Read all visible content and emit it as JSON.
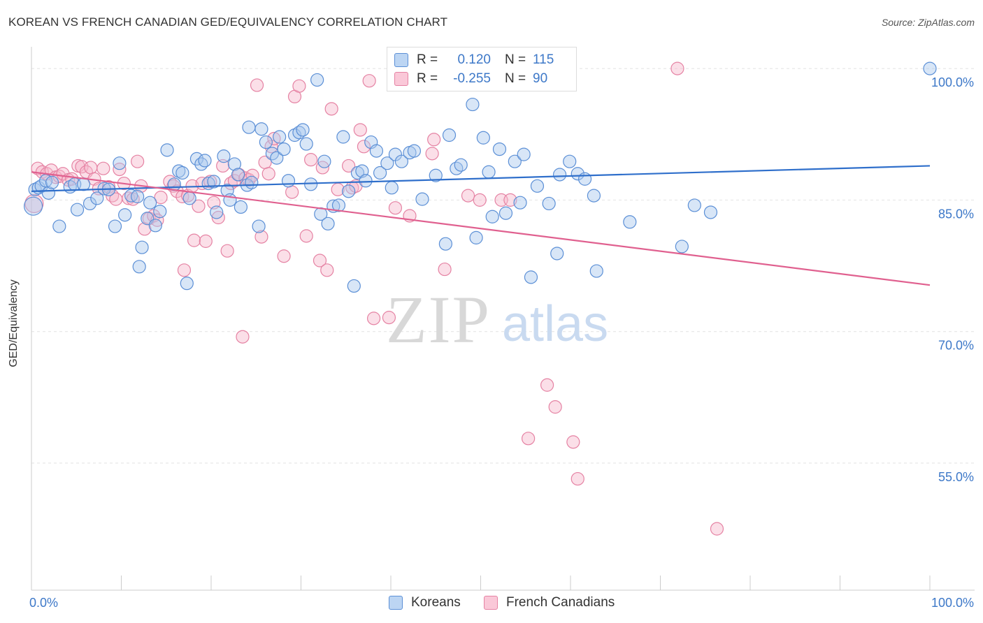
{
  "title": "KOREAN VS FRENCH CANADIAN GED/EQUIVALENCY CORRELATION CHART",
  "source": "Source: ZipAtlas.com",
  "watermark": {
    "zip": "ZIP",
    "atlas": "atlas"
  },
  "legend": {
    "rows": [
      {
        "r_label": "R =",
        "r_value": "0.120",
        "n_label": "N =",
        "n_value": "115"
      },
      {
        "r_label": "R =",
        "r_value": "-0.255",
        "n_label": "N =",
        "n_value": "90"
      }
    ]
  },
  "bottom_legend": [
    "Koreans",
    "French Canadians"
  ],
  "colors": {
    "korean_fill": "#a9c8ee",
    "korean_stroke": "#5b8fd6",
    "korean_line": "#2f6fcb",
    "french_fill": "#f6b8cc",
    "french_stroke": "#e582a3",
    "french_line": "#e0608f",
    "tick_text": "#3d78c8",
    "grid": "#e2e2e2"
  },
  "chart_data": {
    "type": "scatter",
    "ylabel": "GED/Equivalency",
    "xlim": [
      0,
      100
    ],
    "ylim": [
      40.5,
      102
    ],
    "x_tick_labels": [
      "0.0%",
      "100.0%"
    ],
    "y_ticks": [
      100,
      85,
      70,
      55
    ],
    "y_tick_labels": [
      "100.0%",
      "85.0%",
      "70.0%",
      "55.0%"
    ],
    "grid": "horizontal dashed",
    "legend_placement": "top-center",
    "series": [
      {
        "name": "Koreans",
        "trend": {
          "x": [
            0,
            100
          ],
          "y": [
            86.0,
            88.9
          ]
        },
        "points": [
          [
            0.2,
            84.3
          ],
          [
            0.4,
            86.2
          ],
          [
            0.8,
            86.4
          ],
          [
            1.1,
            86.6
          ],
          [
            1.6,
            87.2
          ],
          [
            1.9,
            85.8
          ],
          [
            2.3,
            87.0
          ],
          [
            3.1,
            82.0
          ],
          [
            4.3,
            86.5
          ],
          [
            4.8,
            86.8
          ],
          [
            5.1,
            83.9
          ],
          [
            5.8,
            86.8
          ],
          [
            6.5,
            84.6
          ],
          [
            7.3,
            85.2
          ],
          [
            8.1,
            86.3
          ],
          [
            8.6,
            86.2
          ],
          [
            9.3,
            82.0
          ],
          [
            9.8,
            89.2
          ],
          [
            10.4,
            83.3
          ],
          [
            11.1,
            85.5
          ],
          [
            11.8,
            85.4
          ],
          [
            12.3,
            79.6
          ],
          [
            12.0,
            77.4
          ],
          [
            12.9,
            82.9
          ],
          [
            13.2,
            84.7
          ],
          [
            13.8,
            82.1
          ],
          [
            14.3,
            83.7
          ],
          [
            15.1,
            90.7
          ],
          [
            15.9,
            86.8
          ],
          [
            16.4,
            88.3
          ],
          [
            16.8,
            88.1
          ],
          [
            17.3,
            75.5
          ],
          [
            17.6,
            85.2
          ],
          [
            18.4,
            89.7
          ],
          [
            18.9,
            89.1
          ],
          [
            19.3,
            89.5
          ],
          [
            19.7,
            86.9
          ],
          [
            20.3,
            87.1
          ],
          [
            20.6,
            83.6
          ],
          [
            21.4,
            90.0
          ],
          [
            21.8,
            86.1
          ],
          [
            22.1,
            85.0
          ],
          [
            22.6,
            89.1
          ],
          [
            23.0,
            87.9
          ],
          [
            23.3,
            84.2
          ],
          [
            24.0,
            86.7
          ],
          [
            24.5,
            87.0
          ],
          [
            24.2,
            93.3
          ],
          [
            25.3,
            82.0
          ],
          [
            25.6,
            93.1
          ],
          [
            26.1,
            91.6
          ],
          [
            26.8,
            90.3
          ],
          [
            27.3,
            89.8
          ],
          [
            27.6,
            92.2
          ],
          [
            28.1,
            90.8
          ],
          [
            28.6,
            87.2
          ],
          [
            29.3,
            92.4
          ],
          [
            29.8,
            92.7
          ],
          [
            30.2,
            93.0
          ],
          [
            30.6,
            91.4
          ],
          [
            31.1,
            86.8
          ],
          [
            31.8,
            98.7
          ],
          [
            32.2,
            83.4
          ],
          [
            32.6,
            89.4
          ],
          [
            33.0,
            82.3
          ],
          [
            33.6,
            84.3
          ],
          [
            34.2,
            84.4
          ],
          [
            34.7,
            92.2
          ],
          [
            35.3,
            86.0
          ],
          [
            35.9,
            75.2
          ],
          [
            36.3,
            88.1
          ],
          [
            36.8,
            88.3
          ],
          [
            37.2,
            87.2
          ],
          [
            37.8,
            91.6
          ],
          [
            38.4,
            90.6
          ],
          [
            38.8,
            88.1
          ],
          [
            39.6,
            89.2
          ],
          [
            40.1,
            86.4
          ],
          [
            40.5,
            90.2
          ],
          [
            41.2,
            89.4
          ],
          [
            42.1,
            90.4
          ],
          [
            42.6,
            90.6
          ],
          [
            43.5,
            85.1
          ],
          [
            45.0,
            87.8
          ],
          [
            46.1,
            80.0
          ],
          [
            46.5,
            92.4
          ],
          [
            47.3,
            88.6
          ],
          [
            47.8,
            89.0
          ],
          [
            49.1,
            95.9
          ],
          [
            49.5,
            80.7
          ],
          [
            50.3,
            92.1
          ],
          [
            50.9,
            88.2
          ],
          [
            51.3,
            83.1
          ],
          [
            52.1,
            90.8
          ],
          [
            52.8,
            83.5
          ],
          [
            53.8,
            89.4
          ],
          [
            54.4,
            84.7
          ],
          [
            54.8,
            90.2
          ],
          [
            55.6,
            76.2
          ],
          [
            56.3,
            86.6
          ],
          [
            57.6,
            84.6
          ],
          [
            58.5,
            78.9
          ],
          [
            58.8,
            87.9
          ],
          [
            59.9,
            89.4
          ],
          [
            60.8,
            88.0
          ],
          [
            61.6,
            87.4
          ],
          [
            62.6,
            85.5
          ],
          [
            62.9,
            76.9
          ],
          [
            66.6,
            82.5
          ],
          [
            72.4,
            79.7
          ],
          [
            73.8,
            84.4
          ],
          [
            75.6,
            83.6
          ],
          [
            100.0,
            100.0
          ]
        ]
      },
      {
        "name": "French Canadians",
        "trend": {
          "x": [
            0,
            100
          ],
          "y": [
            88.2,
            75.3
          ]
        },
        "points": [
          [
            0.3,
            84.6
          ],
          [
            0.7,
            88.6
          ],
          [
            1.2,
            88.2
          ],
          [
            1.7,
            88.0
          ],
          [
            2.2,
            88.4
          ],
          [
            2.7,
            87.6
          ],
          [
            3.1,
            87.7
          ],
          [
            3.5,
            88.0
          ],
          [
            4.1,
            87.3
          ],
          [
            4.5,
            87.4
          ],
          [
            5.2,
            88.9
          ],
          [
            5.6,
            88.8
          ],
          [
            6.1,
            88.2
          ],
          [
            6.6,
            88.7
          ],
          [
            7.0,
            87.4
          ],
          [
            7.5,
            86.3
          ],
          [
            8.0,
            88.6
          ],
          [
            8.6,
            86.5
          ],
          [
            9.0,
            85.5
          ],
          [
            9.4,
            85.1
          ],
          [
            9.8,
            88.5
          ],
          [
            10.3,
            86.9
          ],
          [
            10.8,
            85.2
          ],
          [
            11.3,
            85.1
          ],
          [
            11.8,
            89.4
          ],
          [
            12.2,
            86.6
          ],
          [
            12.6,
            81.7
          ],
          [
            13.1,
            82.9
          ],
          [
            13.6,
            83.2
          ],
          [
            14.0,
            82.7
          ],
          [
            14.4,
            85.3
          ],
          [
            15.4,
            87.1
          ],
          [
            15.8,
            86.6
          ],
          [
            16.2,
            86.0
          ],
          [
            16.8,
            85.4
          ],
          [
            17.0,
            77.0
          ],
          [
            17.4,
            85.5
          ],
          [
            17.9,
            86.6
          ],
          [
            18.1,
            80.4
          ],
          [
            18.6,
            84.3
          ],
          [
            19.0,
            86.9
          ],
          [
            19.4,
            80.3
          ],
          [
            19.9,
            87.1
          ],
          [
            20.3,
            84.7
          ],
          [
            20.8,
            83.0
          ],
          [
            21.3,
            88.9
          ],
          [
            21.8,
            79.2
          ],
          [
            22.2,
            86.9
          ],
          [
            22.6,
            87.2
          ],
          [
            23.1,
            87.9
          ],
          [
            23.5,
            69.4
          ],
          [
            23.8,
            87.5
          ],
          [
            24.2,
            87.3
          ],
          [
            24.6,
            87.8
          ],
          [
            25.1,
            98.1
          ],
          [
            25.6,
            80.8
          ],
          [
            26.0,
            89.3
          ],
          [
            26.4,
            88.0
          ],
          [
            26.7,
            91.1
          ],
          [
            27.0,
            92.0
          ],
          [
            28.1,
            78.6
          ],
          [
            29.0,
            85.9
          ],
          [
            29.3,
            96.8
          ],
          [
            29.8,
            98.0
          ],
          [
            30.6,
            80.9
          ],
          [
            31.1,
            89.6
          ],
          [
            32.1,
            78.1
          ],
          [
            32.4,
            88.7
          ],
          [
            32.9,
            77.0
          ],
          [
            33.4,
            95.4
          ],
          [
            34.1,
            86.2
          ],
          [
            35.3,
            88.9
          ],
          [
            35.7,
            86.4
          ],
          [
            36.1,
            86.6
          ],
          [
            36.6,
            93.0
          ],
          [
            37.0,
            91.1
          ],
          [
            37.6,
            98.6
          ],
          [
            38.1,
            71.5
          ],
          [
            39.8,
            71.6
          ],
          [
            40.5,
            84.1
          ],
          [
            42.1,
            83.2
          ],
          [
            44.8,
            91.9
          ],
          [
            44.6,
            90.3
          ],
          [
            46.0,
            77.1
          ],
          [
            48.6,
            85.5
          ],
          [
            49.9,
            85.0
          ],
          [
            52.3,
            85.0
          ],
          [
            53.3,
            85.0
          ],
          [
            55.3,
            57.8
          ],
          [
            57.4,
            63.9
          ],
          [
            58.3,
            61.4
          ],
          [
            60.3,
            57.4
          ],
          [
            60.8,
            53.2
          ],
          [
            71.9,
            100.0
          ],
          [
            76.3,
            47.5
          ],
          [
            47.9,
            99.2
          ]
        ]
      }
    ]
  }
}
